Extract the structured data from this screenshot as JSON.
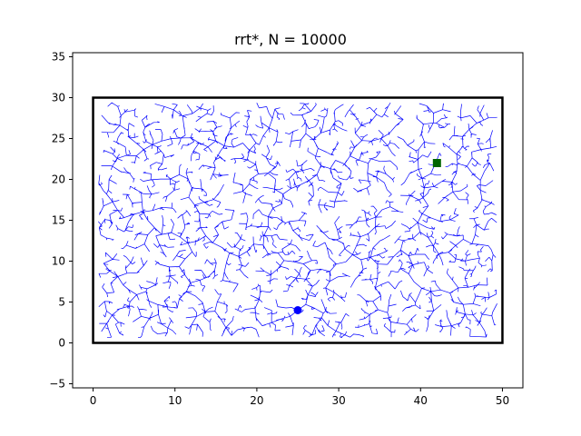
{
  "chart_data": {
    "type": "scatter",
    "title": "rrt*, N = 10000",
    "xlabel": "",
    "ylabel": "",
    "xlim": [
      -2.5,
      52.5
    ],
    "ylim": [
      -5.5,
      35.5
    ],
    "xticks": [
      0,
      10,
      20,
      30,
      40,
      50
    ],
    "yticks": [
      -5,
      0,
      5,
      10,
      15,
      20,
      25,
      30,
      35
    ],
    "grid": false,
    "boundary": {
      "x0": 0,
      "y0": 0,
      "x1": 50,
      "y1": 30
    },
    "start": {
      "x": 25,
      "y": 4,
      "marker": "o",
      "color": "#0000ff"
    },
    "goal": {
      "x": 42,
      "y": 22,
      "marker": "s",
      "color": "#006400"
    },
    "tree": {
      "node_count": 10000,
      "edge_color": "#0000ff"
    }
  }
}
